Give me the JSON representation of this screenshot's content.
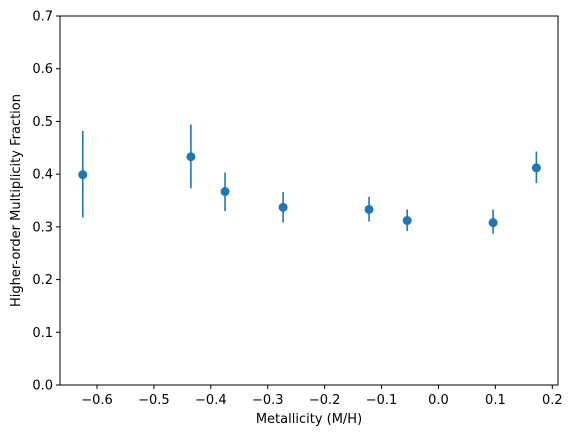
{
  "chart_data": {
    "type": "scatter",
    "title": "",
    "xlabel": "Metallicity (M/H)",
    "ylabel": "Higher-order Multiplicity Fraction",
    "xlim": [
      -0.665,
      0.21
    ],
    "ylim": [
      0.0,
      0.7
    ],
    "x_ticks": [
      -0.6,
      -0.5,
      -0.4,
      -0.3,
      -0.2,
      -0.1,
      0.0,
      0.1,
      0.2
    ],
    "x_tick_labels": [
      "−0.6",
      "−0.5",
      "−0.4",
      "−0.3",
      "−0.2",
      "−0.1",
      "0.0",
      "0.1",
      "0.2"
    ],
    "y_ticks": [
      0.0,
      0.1,
      0.2,
      0.3,
      0.4,
      0.5,
      0.6,
      0.7
    ],
    "y_tick_labels": [
      "0.0",
      "0.1",
      "0.2",
      "0.3",
      "0.4",
      "0.5",
      "0.6",
      "0.7"
    ],
    "grid": false,
    "legend": "none",
    "color": "#1f77b4",
    "points": [
      {
        "x": -0.625,
        "y": 0.399,
        "y_low": 0.318,
        "y_high": 0.482
      },
      {
        "x": -0.435,
        "y": 0.433,
        "y_low": 0.373,
        "y_high": 0.494
      },
      {
        "x": -0.375,
        "y": 0.367,
        "y_low": 0.33,
        "y_high": 0.403
      },
      {
        "x": -0.273,
        "y": 0.337,
        "y_low": 0.308,
        "y_high": 0.366
      },
      {
        "x": -0.122,
        "y": 0.333,
        "y_low": 0.31,
        "y_high": 0.357
      },
      {
        "x": -0.055,
        "y": 0.312,
        "y_low": 0.292,
        "y_high": 0.333
      },
      {
        "x": 0.096,
        "y": 0.308,
        "y_low": 0.287,
        "y_high": 0.333
      },
      {
        "x": 0.172,
        "y": 0.412,
        "y_low": 0.383,
        "y_high": 0.443
      }
    ]
  }
}
